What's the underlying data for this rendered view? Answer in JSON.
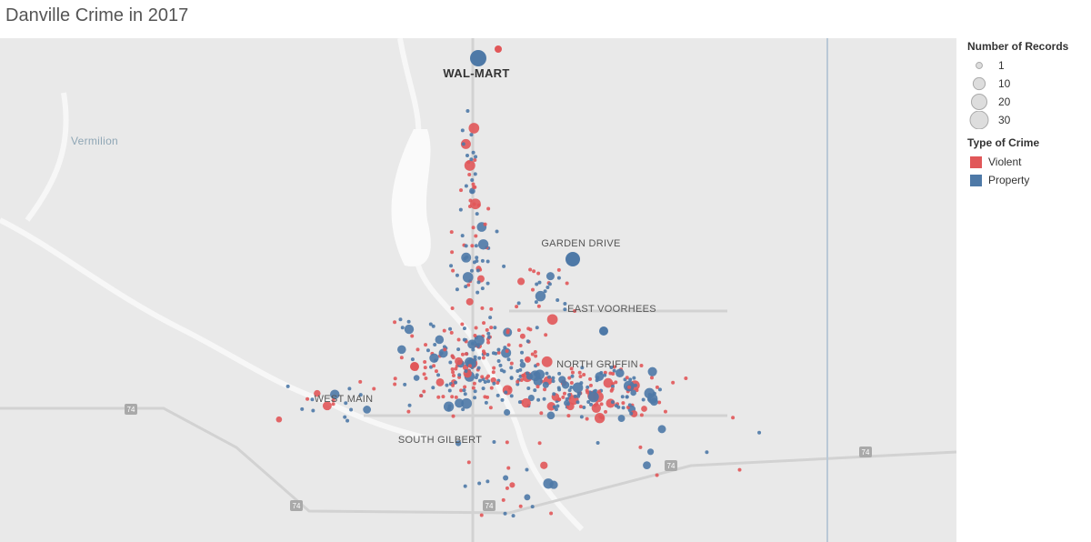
{
  "title": "Danville Crime in 2017",
  "map": {
    "labels": [
      "WAL-MART",
      "Vermilion",
      "GARDEN DRIVE",
      "EAST VOORHEES",
      "NORTH GRIFFIN",
      "WEST MAIN",
      "SOUTH GILBERT"
    ],
    "highway_shields": [
      "74",
      "74",
      "74",
      "74",
      "74"
    ]
  },
  "legend": {
    "size": {
      "title": "Number of Records",
      "values": [
        1,
        10,
        20,
        30
      ]
    },
    "color": {
      "title": "Type of Crime",
      "items": [
        {
          "name": "Violent",
          "color": "#e15759"
        },
        {
          "name": "Property",
          "color": "#4e79a7"
        }
      ]
    }
  }
}
